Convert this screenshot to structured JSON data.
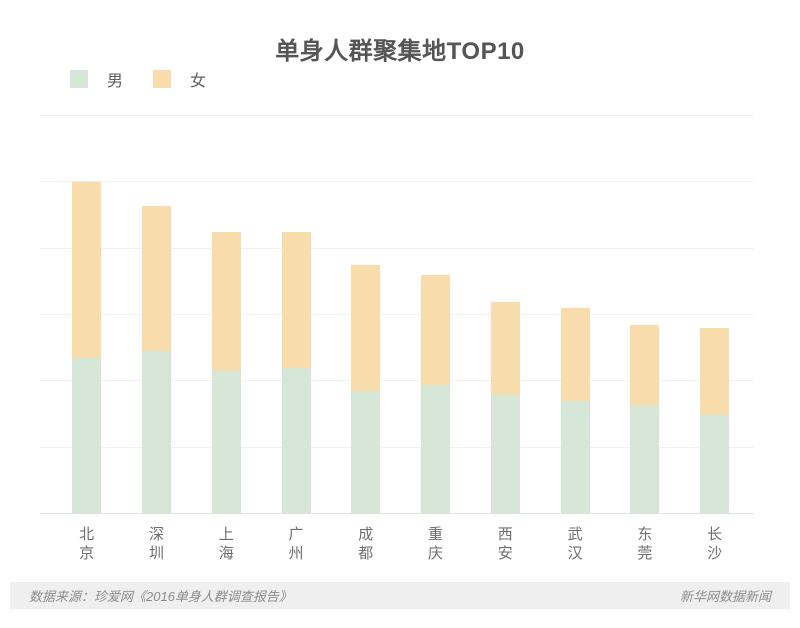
{
  "title": "单身人群聚集地TOP10",
  "legend": {
    "items": [
      {
        "label": "男",
        "color": "#d6e7d7"
      },
      {
        "label": "女",
        "color": "#f9dcab"
      }
    ]
  },
  "footer": {
    "source": "数据来源：珍爱网《2016单身人群调查报告》",
    "credit": "新华网数据新闻"
  },
  "colors": {
    "male": "#d6e7d7",
    "female": "#f9dcab",
    "gridline": "#f1f1f1",
    "axis": "#e2e2e2",
    "title_text": "#555555",
    "label_text": "#6e6e6e",
    "footer_bg": "#efefef",
    "footer_text": "#8c8c8c"
  },
  "chart_data": {
    "type": "bar",
    "stacked": true,
    "title": "单身人群聚集地TOP10",
    "categories": [
      "北京",
      "深圳",
      "上海",
      "广州",
      "成都",
      "重庆",
      "西安",
      "武汉",
      "东莞",
      "长沙"
    ],
    "series": [
      {
        "name": "男",
        "color": "#d6e7d7",
        "values": [
          4.7,
          4.9,
          4.3,
          4.4,
          3.7,
          3.9,
          3.6,
          3.4,
          3.3,
          3.0
        ]
      },
      {
        "name": "女",
        "color": "#f9dcab",
        "values": [
          5.3,
          4.4,
          4.2,
          4.1,
          3.8,
          3.3,
          2.8,
          2.8,
          2.4,
          2.6
        ]
      }
    ],
    "totals": [
      10.0,
      9.3,
      8.5,
      8.5,
      7.5,
      7.2,
      6.4,
      6.2,
      5.7,
      5.6
    ],
    "xlabel": "",
    "ylabel": "",
    "ylim": [
      0,
      12
    ],
    "gridline_step": 2,
    "y_axis_labels_visible": false,
    "values_estimated_from_gridlines": true,
    "unit": "%",
    "legend_position": "top-left",
    "legend_entries": [
      "男",
      "女"
    ]
  }
}
